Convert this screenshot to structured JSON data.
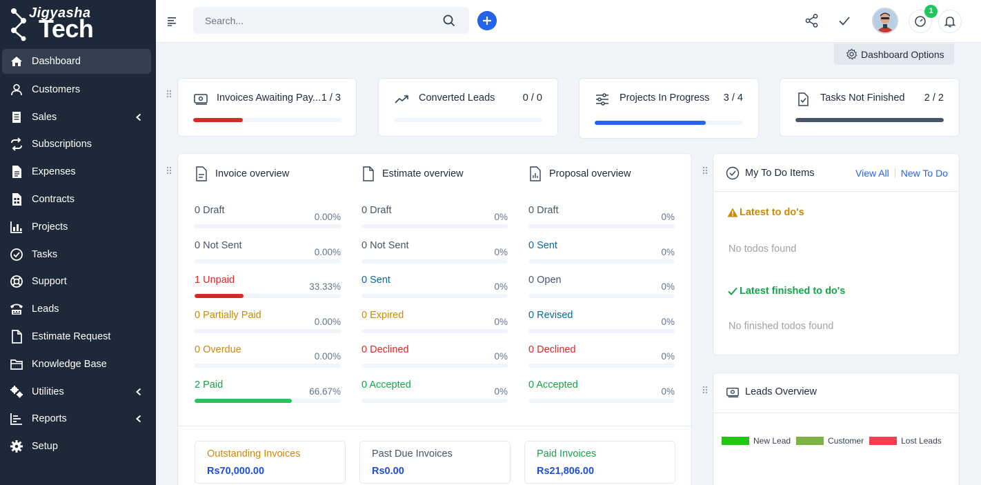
{
  "brand": {
    "line1": "Jigyasha",
    "line2": "Tech"
  },
  "sidebar": {
    "items": [
      {
        "label": "Dashboard",
        "icon": "home-icon",
        "active": true,
        "chevron": false
      },
      {
        "label": "Customers",
        "icon": "user-icon",
        "chevron": false
      },
      {
        "label": "Sales",
        "icon": "receipt-icon",
        "chevron": true
      },
      {
        "label": "Subscriptions",
        "icon": "repeat-icon",
        "chevron": false
      },
      {
        "label": "Expenses",
        "icon": "file-text-icon",
        "chevron": false
      },
      {
        "label": "Contracts",
        "icon": "contract-icon",
        "chevron": false
      },
      {
        "label": "Projects",
        "icon": "chart-bars-icon",
        "chevron": false
      },
      {
        "label": "Tasks",
        "icon": "check-circle-icon",
        "chevron": false
      },
      {
        "label": "Support",
        "icon": "lifebuoy-icon",
        "chevron": false
      },
      {
        "label": "Leads",
        "icon": "tty-icon",
        "chevron": false
      },
      {
        "label": "Estimate Request",
        "icon": "file-icon",
        "chevron": false
      },
      {
        "label": "Knowledge Base",
        "icon": "folder-icon",
        "chevron": false
      },
      {
        "label": "Utilities",
        "icon": "cogs-icon",
        "chevron": true
      },
      {
        "label": "Reports",
        "icon": "report-icon",
        "chevron": true
      },
      {
        "label": "Setup",
        "icon": "gear-icon",
        "chevron": false
      }
    ]
  },
  "header": {
    "search_placeholder": "Search...",
    "notification_count": "1"
  },
  "dashboard_options": {
    "label": "Dashboard Options"
  },
  "stats": [
    {
      "label": "Invoices Awaiting Pay...",
      "count": "1 / 3",
      "progress": 0.3333,
      "color": "#dc2626"
    },
    {
      "label": "Converted Leads",
      "count": "0 / 0",
      "progress": 0,
      "color": "#22c55e"
    },
    {
      "label": "Projects In Progress",
      "count": "3 / 4",
      "progress": 0.75,
      "color": "#2563eb"
    },
    {
      "label": "Tasks Not Finished",
      "count": "2 / 2",
      "progress": 1.0,
      "color": "#475569"
    }
  ],
  "overview": {
    "invoice": {
      "title": "Invoice overview",
      "rows": [
        {
          "count": "0",
          "label": "Draft",
          "percent": "0.00%",
          "value": 0,
          "tone": "gray"
        },
        {
          "count": "0",
          "label": "Not Sent",
          "percent": "0.00%",
          "value": 0,
          "tone": "gray"
        },
        {
          "count": "1",
          "label": "Unpaid",
          "percent": "33.33%",
          "value": 33.33,
          "tone": "red"
        },
        {
          "count": "0",
          "label": "Partially Paid",
          "percent": "0.00%",
          "value": 0,
          "tone": "amber"
        },
        {
          "count": "0",
          "label": "Overdue",
          "percent": "0.00%",
          "value": 0,
          "tone": "amber"
        },
        {
          "count": "2",
          "label": "Paid",
          "percent": "66.67%",
          "value": 66.67,
          "tone": "green"
        }
      ]
    },
    "estimate": {
      "title": "Estimate overview",
      "rows": [
        {
          "count": "0",
          "label": "Draft",
          "percent": "0%",
          "value": 0,
          "tone": "gray"
        },
        {
          "count": "0",
          "label": "Not Sent",
          "percent": "0%",
          "value": 0,
          "tone": "gray"
        },
        {
          "count": "0",
          "label": "Sent",
          "percent": "0%",
          "value": 0,
          "tone": "blue"
        },
        {
          "count": "0",
          "label": "Expired",
          "percent": "0%",
          "value": 0,
          "tone": "amber"
        },
        {
          "count": "0",
          "label": "Declined",
          "percent": "0%",
          "value": 0,
          "tone": "red"
        },
        {
          "count": "0",
          "label": "Accepted",
          "percent": "0%",
          "value": 0,
          "tone": "green"
        }
      ]
    },
    "proposal": {
      "title": "Proposal overview",
      "rows": [
        {
          "count": "0",
          "label": "Draft",
          "percent": "0%",
          "value": 0,
          "tone": "gray"
        },
        {
          "count": "0",
          "label": "Sent",
          "percent": "0%",
          "value": 0,
          "tone": "blue"
        },
        {
          "count": "0",
          "label": "Open",
          "percent": "0%",
          "value": 0,
          "tone": "gray"
        },
        {
          "count": "0",
          "label": "Revised",
          "percent": "0%",
          "value": 0,
          "tone": "blue"
        },
        {
          "count": "0",
          "label": "Declined",
          "percent": "0%",
          "value": 0,
          "tone": "red"
        },
        {
          "count": "0",
          "label": "Accepted",
          "percent": "0%",
          "value": 0,
          "tone": "green"
        }
      ]
    },
    "totals": [
      {
        "label": "Outstanding Invoices",
        "value": "Rs70,000.00",
        "tone": "amber"
      },
      {
        "label": "Past Due Invoices",
        "value": "Rs0.00",
        "tone": "gray"
      },
      {
        "label": "Paid Invoices",
        "value": "Rs21,806.00",
        "tone": "green"
      }
    ]
  },
  "todo": {
    "title": "My To Do Items",
    "view_all": "View All",
    "new_todo": "New To Do",
    "latest_title": "Latest to do's",
    "latest_empty": "No todos found",
    "finished_title": "Latest finished to do's",
    "finished_empty": "No finished todos found"
  },
  "leads": {
    "title": "Leads Overview",
    "legend": [
      {
        "name": "New Lead",
        "color": "#22c512"
      },
      {
        "name": "Customer",
        "color": "#7cb342"
      },
      {
        "name": "Lost Leads",
        "color": "#f43f4e"
      }
    ]
  },
  "colors": {
    "sidebar_bg": "#1d2838",
    "accent": "#2563eb"
  }
}
